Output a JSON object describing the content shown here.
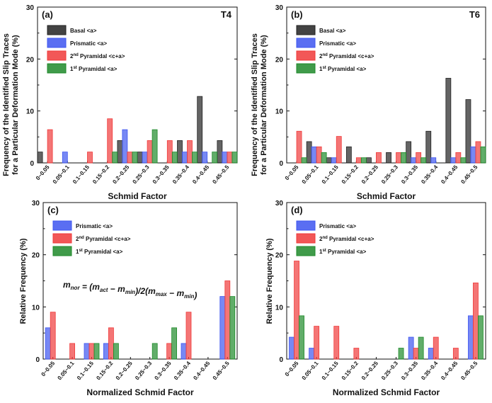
{
  "colors": {
    "basal": "#222222",
    "prismatic": "#3d55f0",
    "pyr2": "#f03a3a",
    "pyr1": "#1e8a2a"
  },
  "shared": {
    "categories": [
      "0~0.05",
      "0.05~0.1",
      "0.1~0.15",
      "0.15~0.2",
      "0.2~0.25",
      "0.25~0.3",
      "0.3~0.35",
      "0.35~0.4",
      "0.4~0.45",
      "0.45~0.5"
    ],
    "yticks": [
      "0",
      "10",
      "20",
      "30"
    ],
    "ylabel_top_line1": "Frequency of the Identified Slip Traces",
    "ylabel_top_line2": "for a Particular Deformation Mode (%)",
    "ylabel_bottom": "Relative Frequency (%)"
  },
  "chart_data": [
    {
      "type": "bar",
      "panel": "(a)",
      "tag": "T4",
      "xlabel": "Schmid Factor",
      "ylim": [
        0,
        30
      ],
      "legend_position": "top-left",
      "categories": [
        "0~0.05",
        "0.05~0.1",
        "0.1~0.15",
        "0.15~0.2",
        "0.2~0.25",
        "0.25~0.3",
        "0.3~0.35",
        "0.35~0.4",
        "0.4~0.45",
        "0.45~0.5"
      ],
      "series": [
        {
          "name": "Basal <a>",
          "legend_main": "Basal <a>",
          "legend_sup": "",
          "legend_rest": "",
          "key": "basal",
          "values": [
            2.1,
            0,
            0,
            0,
            4.3,
            2.1,
            0,
            4.3,
            12.8,
            4.3
          ]
        },
        {
          "name": "Prismatic <a>",
          "legend_main": "Prismatic <a>",
          "legend_sup": "",
          "legend_rest": "",
          "key": "prismatic",
          "values": [
            0,
            2.1,
            0,
            0,
            6.4,
            2.1,
            0,
            2.1,
            2.1,
            2.1
          ]
        },
        {
          "name": "2nd Pyramidal <c+a>",
          "legend_main": "2",
          "legend_sup": "nd",
          "legend_rest": " Pyramidal <c+a>",
          "key": "pyr2",
          "values": [
            6.4,
            0,
            2.1,
            8.5,
            2.1,
            4.3,
            4.3,
            4.3,
            0,
            2.1
          ]
        },
        {
          "name": "1st Pyramidal <a>",
          "legend_main": "1",
          "legend_sup": "st",
          "legend_rest": " Pyramidal <a>",
          "key": "pyr1",
          "values": [
            0,
            0,
            0,
            2.1,
            2.1,
            6.4,
            2.1,
            2.1,
            2.1,
            2.1
          ]
        }
      ]
    },
    {
      "type": "bar",
      "panel": "(b)",
      "tag": "T6",
      "xlabel": "Schmid Factor",
      "ylim": [
        0,
        30
      ],
      "legend_position": "top-left",
      "categories": [
        "0~0.05",
        "0.05~0.1",
        "0.1~0.15",
        "0.15~0.2",
        "0.2~0.25",
        "0.25~0.3",
        "0.3~0.35",
        "0.35~0.4",
        "0.4~0.45",
        "0.45~0.5"
      ],
      "series": [
        {
          "name": "Basal <a>",
          "legend_main": "Basal <a>",
          "legend_sup": "",
          "legend_rest": "",
          "key": "basal",
          "values": [
            0,
            4.1,
            1.0,
            3.1,
            1.0,
            2.0,
            4.1,
            6.1,
            16.3,
            12.2
          ]
        },
        {
          "name": "Prismatic <a>",
          "legend_main": "Prismatic <a>",
          "legend_sup": "",
          "legend_rest": "",
          "key": "prismatic",
          "values": [
            0,
            3.1,
            1.0,
            0,
            0,
            0,
            1.0,
            1.0,
            1.0,
            3.1
          ]
        },
        {
          "name": "2nd Pyramidal <c+a>",
          "legend_main": "2",
          "legend_sup": "nd",
          "legend_rest": " Pyramidal <c+a>",
          "key": "pyr2",
          "values": [
            6.1,
            3.1,
            5.1,
            1.0,
            2.0,
            2.0,
            2.0,
            0,
            2.0,
            4.1
          ]
        },
        {
          "name": "1st Pyramidal <a>",
          "legend_main": "1",
          "legend_sup": "st",
          "legend_rest": " Pyramidal <a>",
          "key": "pyr1",
          "values": [
            1.0,
            2.0,
            0,
            1.0,
            0,
            2.0,
            1.0,
            0,
            1.0,
            3.1
          ]
        }
      ]
    },
    {
      "type": "bar",
      "panel": "(c)",
      "tag": "",
      "xlabel": "Normalized Schmid Factor",
      "ylim": [
        0,
        30
      ],
      "legend_position": "top-left",
      "equation": {
        "main": "m",
        "parts": [
          [
            "m",
            "nor"
          ],
          [
            " = (",
            ""
          ],
          [
            "m",
            "act"
          ],
          [
            " − ",
            ""
          ],
          [
            "m",
            "min"
          ],
          [
            ")/2(",
            ""
          ],
          [
            "m",
            "max"
          ],
          [
            " − ",
            ""
          ],
          [
            "m",
            "min"
          ],
          [
            ")",
            ""
          ]
        ]
      },
      "categories": [
        "0~0.05",
        "0.05~0.1",
        "0.1~0.15",
        "0.15~0.2",
        "0.2~0.25",
        "0.25~0.3",
        "0.3~0.35",
        "0.35~0.4",
        "0.4~0.45",
        "0.45~0.5"
      ],
      "series": [
        {
          "name": "Prismatic <a>",
          "legend_main": "Prismatic <a>",
          "legend_sup": "",
          "legend_rest": "",
          "key": "prismatic",
          "values": [
            6,
            0,
            3,
            3,
            0,
            0,
            0,
            3,
            0,
            12
          ]
        },
        {
          "name": "2nd Pyramidal <c+a>",
          "legend_main": "2",
          "legend_sup": "nd",
          "legend_rest": " Pyramidal <c+a>",
          "key": "pyr2",
          "values": [
            9,
            3,
            3,
            6,
            0,
            0,
            3,
            9,
            0,
            15
          ]
        },
        {
          "name": "1st Pyramidal <a>",
          "legend_main": "1",
          "legend_sup": "st",
          "legend_rest": " Pyramidal <a>",
          "key": "pyr1",
          "values": [
            0,
            0,
            3,
            3,
            0,
            3,
            6,
            0,
            0,
            12
          ]
        }
      ]
    },
    {
      "type": "bar",
      "panel": "(d)",
      "tag": "",
      "xlabel": "Normalized Schmid Factor",
      "ylim": [
        0,
        30
      ],
      "legend_position": "top-left",
      "categories": [
        "0~0.05",
        "0.05~0.1",
        "0.1~0.15",
        "0.15~0.2",
        "0.2~0.25",
        "0.25~0.3",
        "0.3~0.35",
        "0.35~0.4",
        "0.4~0.45",
        "0.45~0.5"
      ],
      "series": [
        {
          "name": "Prismatic <a>",
          "legend_main": "Prismatic <a>",
          "legend_sup": "",
          "legend_rest": "",
          "key": "prismatic",
          "values": [
            4.2,
            2.1,
            0,
            0,
            0,
            0,
            4.2,
            2.1,
            0,
            8.3
          ]
        },
        {
          "name": "2nd Pyramidal <c+a>",
          "legend_main": "2",
          "legend_sup": "nd",
          "legend_rest": " Pyramidal <c+a>",
          "key": "pyr2",
          "values": [
            18.8,
            6.3,
            6.3,
            2.1,
            0,
            0,
            2.1,
            4.2,
            2.1,
            14.6
          ]
        },
        {
          "name": "1st Pyramidal <a>",
          "legend_main": "1",
          "legend_sup": "st",
          "legend_rest": " Pyramidal <a>",
          "key": "pyr1",
          "values": [
            8.3,
            0,
            0,
            0,
            0,
            2.1,
            4.2,
            0,
            0,
            8.3
          ]
        }
      ]
    }
  ]
}
